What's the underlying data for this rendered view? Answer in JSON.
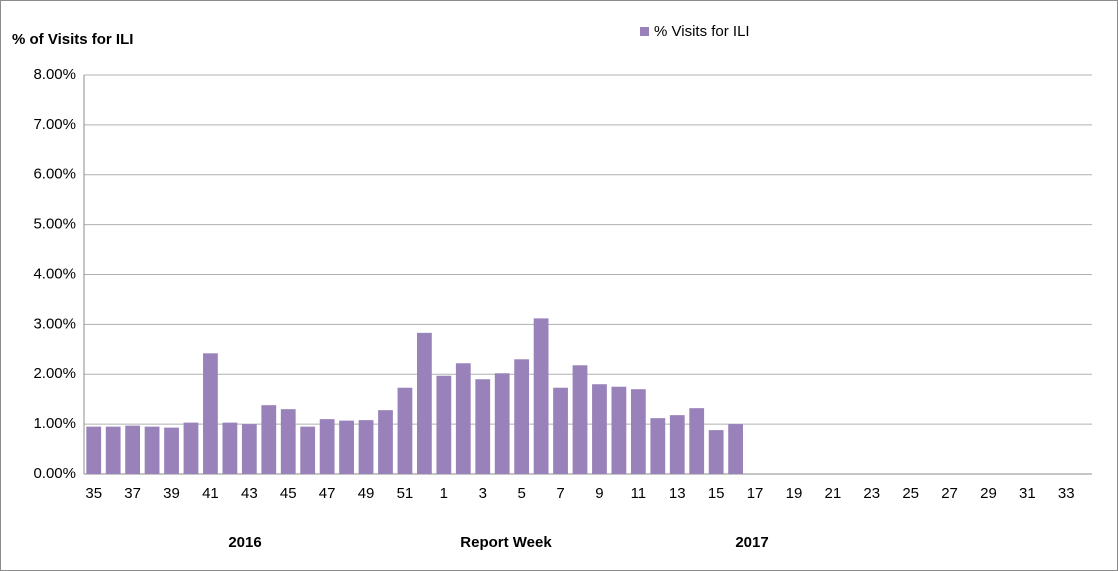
{
  "chart_data": {
    "type": "bar",
    "y_label": "% of Visits for ILI",
    "x_label": "Report Week",
    "annotations": [
      "2016",
      "2017"
    ],
    "categories": [
      "35",
      null,
      "37",
      null,
      "39",
      null,
      "41",
      null,
      "43",
      null,
      "45",
      null,
      "47",
      null,
      "49",
      null,
      "51",
      null,
      "1",
      null,
      "3",
      null,
      "5",
      null,
      "7",
      null,
      "9",
      null,
      "11",
      null,
      "13",
      null,
      "15",
      null,
      "17",
      null,
      "19",
      null,
      "21",
      null,
      "23",
      null,
      "25",
      null,
      "27",
      null,
      "29",
      null,
      "31",
      null,
      "33"
    ],
    "series": [
      {
        "name": "% Visits for ILI",
        "color": "#9882b9",
        "values": [
          0.95,
          0.95,
          0.97,
          0.95,
          0.93,
          1.03,
          2.42,
          1.03,
          1.0,
          1.38,
          1.3,
          0.95,
          1.1,
          1.07,
          1.08,
          1.28,
          1.73,
          2.83,
          1.97,
          2.22,
          1.9,
          2.02,
          2.3,
          3.12,
          1.73,
          2.18,
          1.8,
          1.75,
          1.7,
          1.12,
          1.18,
          1.32,
          0.88,
          1.0,
          null,
          null,
          null,
          null,
          null,
          null,
          null,
          null,
          null,
          null,
          null,
          null,
          null,
          null,
          null,
          null,
          null
        ]
      }
    ],
    "ylim": [
      0,
      8
    ],
    "yticks": [
      {
        "value": 0,
        "label": "0.00%"
      },
      {
        "value": 1,
        "label": "1.00%"
      },
      {
        "value": 2,
        "label": "2.00%"
      },
      {
        "value": 3,
        "label": "3.00%"
      },
      {
        "value": 4,
        "label": "4.00%"
      },
      {
        "value": 5,
        "label": "5.00%"
      },
      {
        "value": 6,
        "label": "6.00%"
      },
      {
        "value": 7,
        "label": "7.00%"
      },
      {
        "value": 8,
        "label": "8.00%"
      }
    ],
    "grid": true
  }
}
